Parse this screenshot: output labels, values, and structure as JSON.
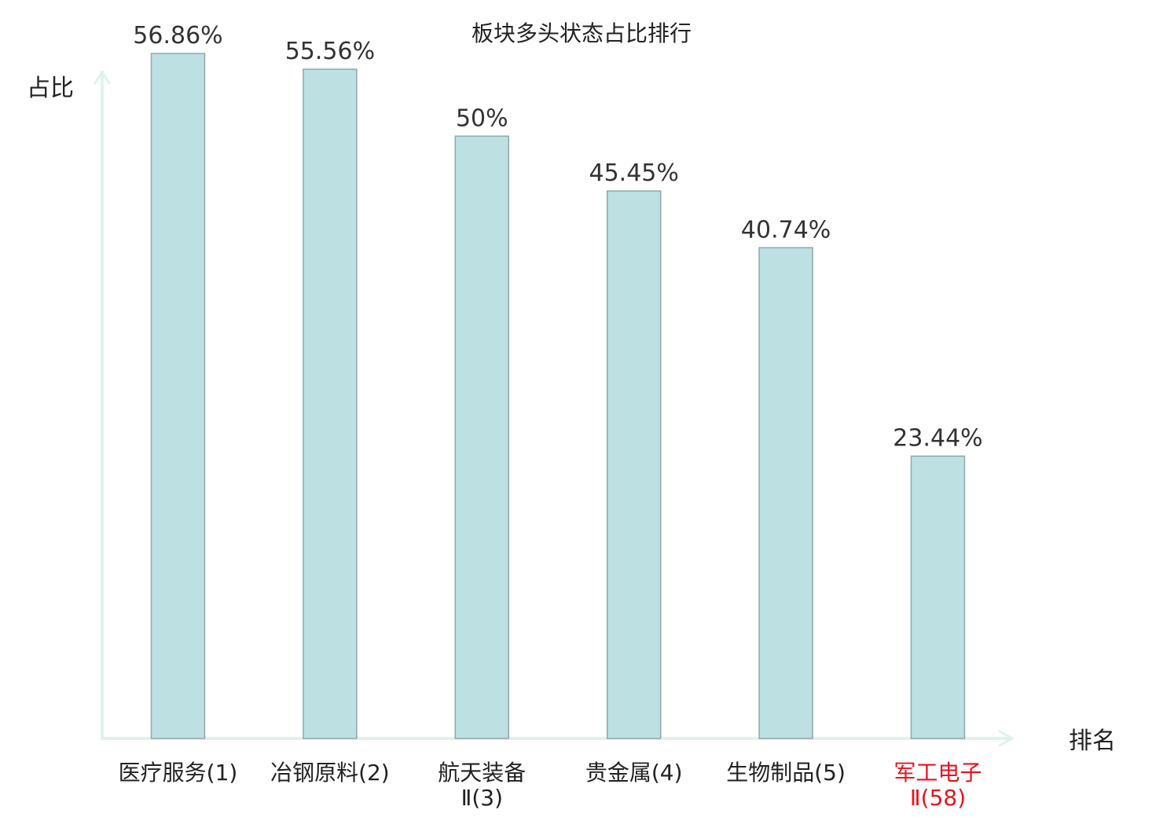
{
  "chart_data": {
    "type": "bar",
    "title": "板块多头状态占比排行",
    "xlabel": "排名",
    "ylabel": "占比",
    "ylim": [
      0,
      60
    ],
    "grid": false,
    "categories": [
      [
        "医疗服务(1)"
      ],
      [
        "冶钢原料(2)"
      ],
      [
        "航天装备",
        "Ⅱ(3)"
      ],
      [
        "贵金属(4)"
      ],
      [
        "生物制品(5)"
      ],
      [
        "军工电子",
        "Ⅱ(58)"
      ]
    ],
    "values": [
      56.86,
      55.56,
      50,
      45.45,
      40.74,
      23.44
    ],
    "value_labels": [
      "56.86%",
      "55.56%",
      "50%",
      "45.45%",
      "40.74%",
      "23.44%"
    ],
    "highlight_index": 5
  },
  "colors": {
    "bar_fill": "#bde0e2",
    "bar_stroke": "#8fa8ab",
    "axis": "#dff2ef",
    "text": "#222222",
    "value_text": "#333333",
    "highlight": "#e8141b"
  }
}
